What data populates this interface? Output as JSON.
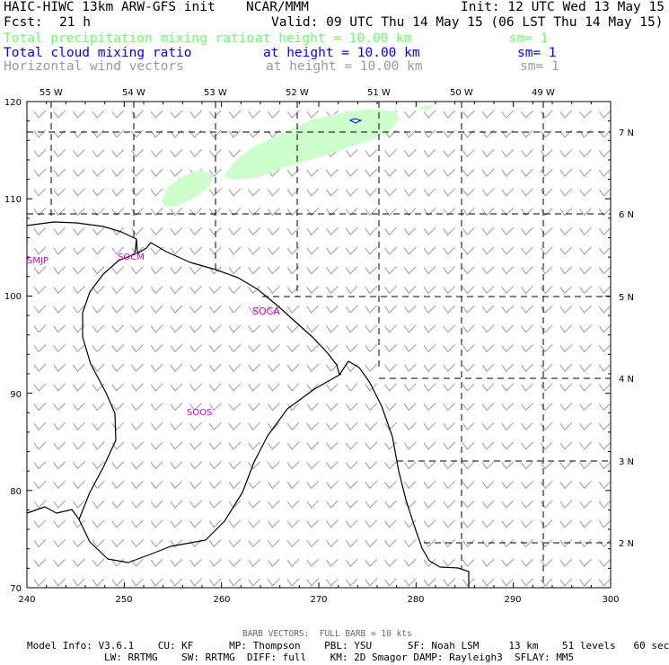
{
  "header": {
    "model_title": "HAIC-HIWC 13km ARW-GFS init",
    "org": "NCAR/MMM",
    "init": "Init: 12 UTC Wed 13 May 15",
    "fcst": "Fcst:",
    "fcst_value": "21 h",
    "valid": "Valid: 09 UTC Thu 14 May 15 (06 LST Thu 14 May 15)"
  },
  "fields": [
    {
      "name": "Total precipitation mixing ratio",
      "level": "at height = 10.00 km",
      "sm": "sm= 1",
      "color": "#66ff66"
    },
    {
      "name": "Total cloud mixing ratio",
      "level": "at height = 10.00 km",
      "sm": "sm= 1",
      "color": "#0000ff"
    },
    {
      "name": "Horizontal wind vectors",
      "level": "at height = 10.00 km",
      "sm": "sm= 1",
      "color": "#999999"
    }
  ],
  "map": {
    "x_range": [
      240,
      300
    ],
    "y_range": [
      70,
      120
    ],
    "x_ticks": [
      240,
      250,
      260,
      270,
      280,
      290,
      300
    ],
    "y_ticks": [
      70,
      80,
      90,
      100,
      110,
      120
    ],
    "lon_labels": [
      "55 W",
      "54 W",
      "53 W",
      "52 W",
      "51 W",
      "50 W",
      "49 W"
    ],
    "lat_labels": [
      "7 N",
      "6 N",
      "5 N",
      "4 N",
      "3 N",
      "2 N"
    ],
    "stations": [
      "SMJP",
      "SOCM",
      "SOCA",
      "SOOS"
    ],
    "barb_color": "#999999",
    "precip_color": "#ccffcc",
    "cloud_color": "#0000ff"
  },
  "footer": {
    "barb_note": "BARB VECTORS:  FULL BARB = 10 kts",
    "line1": "Model Info: V3.6.1    CU: KF      MP: Thompson    PBL: YSU      SF: Noah LSM     13 km    51 levels   60 sec",
    "line2": "LW: RRTMG    SW: RRTMG  DIFF: full    KM: 2D Smagor DAMP: Rayleigh3  SFLAY: MM5"
  }
}
